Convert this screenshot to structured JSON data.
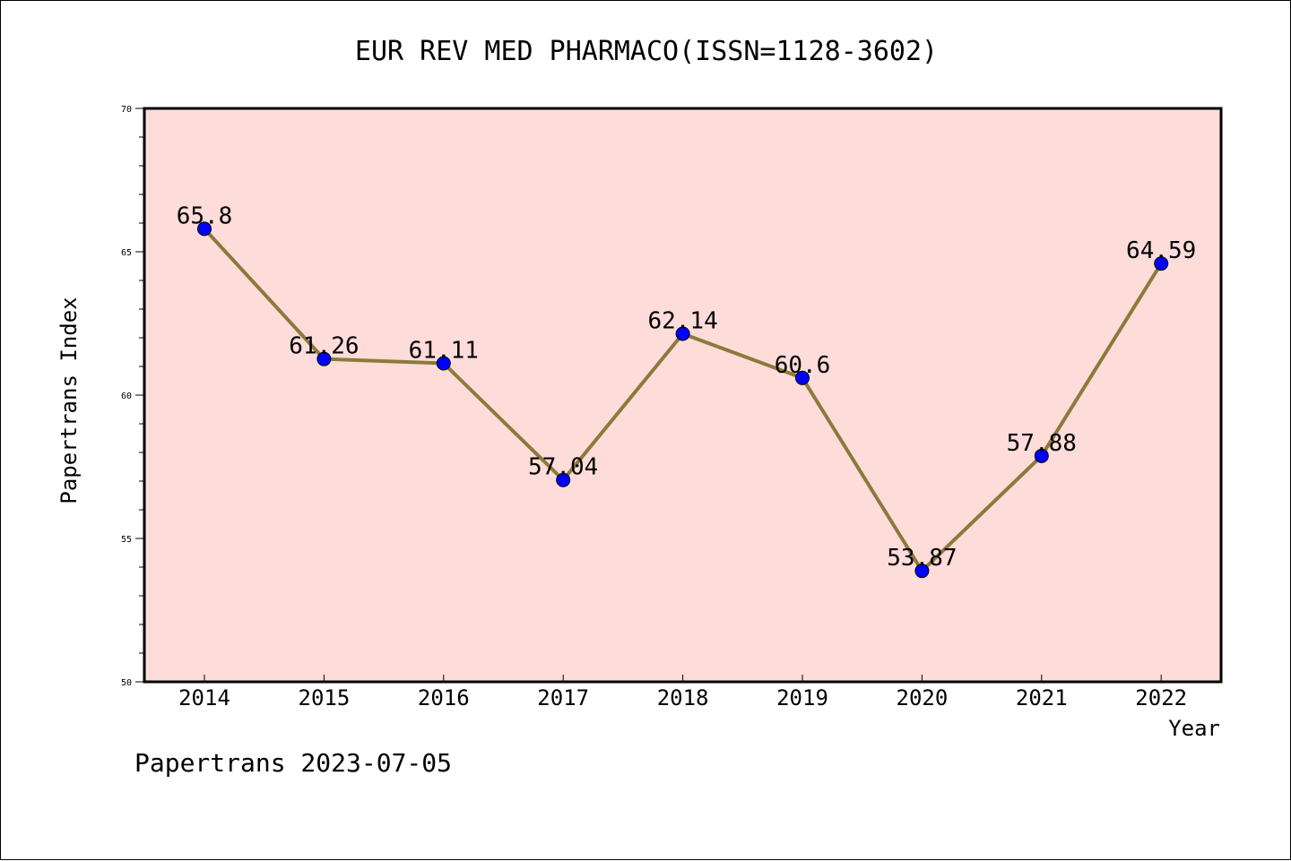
{
  "chart_data": {
    "type": "line",
    "title": "EUR REV MED PHARMACO(ISSN=1128-3602)",
    "xlabel": "Year",
    "ylabel": "Papertrans Index",
    "categories": [
      "2014",
      "2015",
      "2016",
      "2017",
      "2018",
      "2019",
      "2020",
      "2021",
      "2022"
    ],
    "series": [
      {
        "values": [
          65.8,
          61.26,
          61.11,
          57.04,
          62.14,
          60.6,
          53.87,
          57.88,
          64.59
        ]
      }
    ],
    "data_labels": [
      "65.8",
      "61.26",
      "61.11",
      "57.04",
      "62.14",
      "60.6",
      "53.87",
      "57.88",
      "64.59"
    ],
    "ylim": [
      50,
      70
    ],
    "yticks": [
      "50",
      "55",
      "60",
      "65",
      "70"
    ],
    "grid": false,
    "legend": "none"
  },
  "footer": {
    "text": "Papertrans 2023-07-05"
  },
  "colors": {
    "plot_background": "#fddcda",
    "line": "#8b7a3a",
    "marker": "#0000ff",
    "axis": "#000000"
  }
}
